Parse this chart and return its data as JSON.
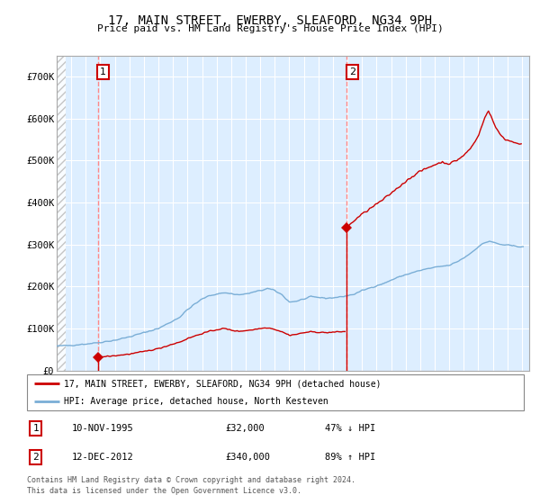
{
  "title": "17, MAIN STREET, EWERBY, SLEAFORD, NG34 9PH",
  "subtitle": "Price paid vs. HM Land Registry's House Price Index (HPI)",
  "legend_line1": "17, MAIN STREET, EWERBY, SLEAFORD, NG34 9PH (detached house)",
  "legend_line2": "HPI: Average price, detached house, North Kesteven",
  "sale1_date": "10-NOV-1995",
  "sale1_price": 32000,
  "sale1_label": "47% ↓ HPI",
  "sale2_date": "12-DEC-2012",
  "sale2_price": 340000,
  "sale2_label": "89% ↑ HPI",
  "footnote": "Contains HM Land Registry data © Crown copyright and database right 2024.\nThis data is licensed under the Open Government Licence v3.0.",
  "hpi_color": "#7aaed6",
  "price_color": "#cc0000",
  "vline_color": "#ff8888",
  "dot_color": "#cc0000",
  "bg_color": "#ddeeff",
  "grid_color": "#ffffff",
  "ylim_max": 750000,
  "xlim_start": 1993.0,
  "xlim_end": 2025.5,
  "sale1_x": 1995.83,
  "sale2_x": 2012.95
}
